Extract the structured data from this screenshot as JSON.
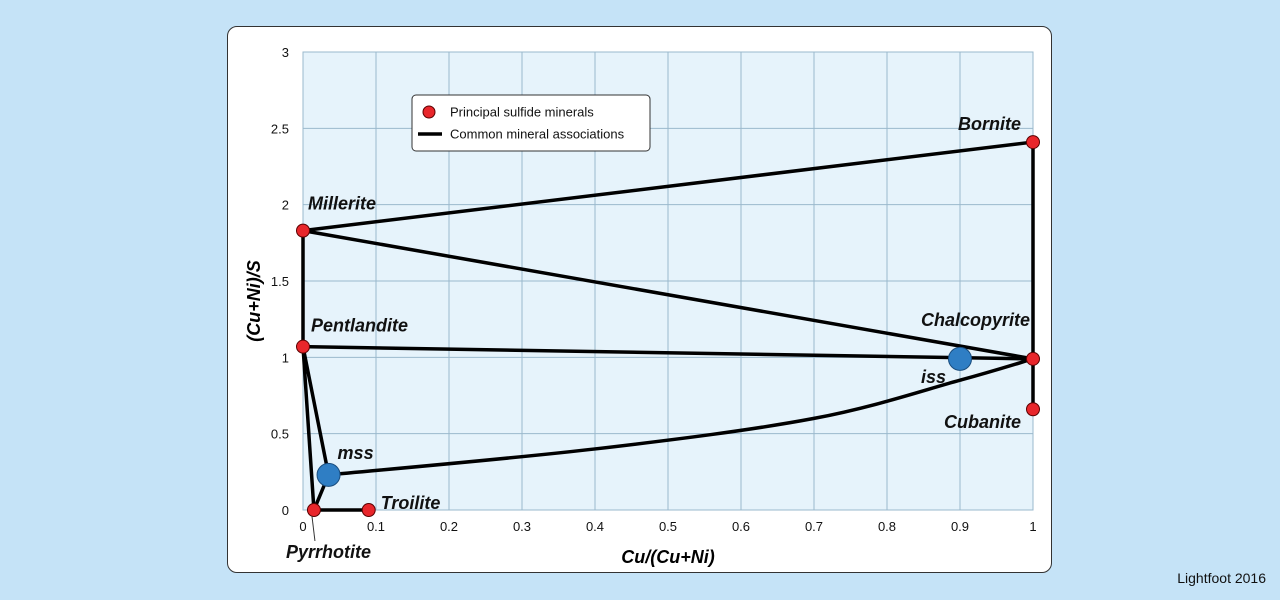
{
  "credit": "Lightfoot 2016",
  "chart_data": {
    "type": "scatter",
    "xlabel": "Cu/(Cu+Ni)",
    "ylabel": "(Cu+Ni)/S",
    "xlim": [
      0,
      1
    ],
    "ylim": [
      0,
      3
    ],
    "xticks": [
      "0",
      "0.1",
      "0.2",
      "0.3",
      "0.4",
      "0.5",
      "0.6",
      "0.7",
      "0.8",
      "0.9",
      "1"
    ],
    "yticks": [
      "0",
      "0.5",
      "1",
      "1.5",
      "2",
      "2.5",
      "3"
    ],
    "grid": true,
    "plot_bg": "#e6f3fb",
    "grid_color": "#9ab8cc",
    "legend": {
      "position": "top-left",
      "items": [
        {
          "label": "Principal sulfide minerals",
          "symbol": "dot",
          "color": "#e8262b"
        },
        {
          "label": "Common mineral associations",
          "symbol": "line",
          "color": "#000000"
        }
      ]
    },
    "minerals": [
      {
        "name": "Troilite",
        "x": 0.09,
        "y": 0.0
      },
      {
        "name": "Pyrrhotite",
        "x": 0.015,
        "y": 0.0
      },
      {
        "name": "Pentlandite",
        "x": 0.0,
        "y": 1.07
      },
      {
        "name": "Millerite",
        "x": 0.0,
        "y": 1.83
      },
      {
        "name": "Bornite",
        "x": 1.0,
        "y": 2.41
      },
      {
        "name": "Chalcopyrite",
        "x": 1.0,
        "y": 0.99
      },
      {
        "name": "Cubanite",
        "x": 1.0,
        "y": 0.66
      }
    ],
    "solid_solutions": [
      {
        "name": "mss",
        "x": 0.035,
        "y": 0.23
      },
      {
        "name": "iss",
        "x": 0.9,
        "y": 0.99
      }
    ],
    "associations": [
      {
        "points": [
          [
            0.015,
            0.0
          ],
          [
            0.09,
            0.0
          ]
        ]
      },
      {
        "points": [
          [
            0.015,
            0.0
          ],
          [
            0.035,
            0.23
          ]
        ]
      },
      {
        "points": [
          [
            0.015,
            0.0
          ],
          [
            0.0,
            1.07
          ]
        ]
      },
      {
        "points": [
          [
            0.035,
            0.23
          ],
          [
            0.0,
            1.07
          ]
        ]
      },
      {
        "points": [
          [
            0.0,
            1.07
          ],
          [
            0.0,
            1.83
          ]
        ]
      },
      {
        "points": [
          [
            0.0,
            1.83
          ],
          [
            1.0,
            2.41
          ]
        ]
      },
      {
        "points": [
          [
            1.0,
            2.41
          ],
          [
            1.0,
            0.99
          ]
        ]
      },
      {
        "points": [
          [
            1.0,
            0.99
          ],
          [
            1.0,
            0.66
          ]
        ]
      },
      {
        "points": [
          [
            0.0,
            1.83
          ],
          [
            1.0,
            0.99
          ]
        ]
      },
      {
        "points": [
          [
            0.0,
            1.07
          ],
          [
            1.0,
            0.99
          ]
        ]
      },
      {
        "points": [
          [
            0.035,
            0.23
          ],
          [
            0.4,
            0.4
          ],
          [
            0.7,
            0.6
          ],
          [
            0.9,
            0.85
          ],
          [
            1.0,
            0.99
          ]
        ]
      }
    ]
  }
}
